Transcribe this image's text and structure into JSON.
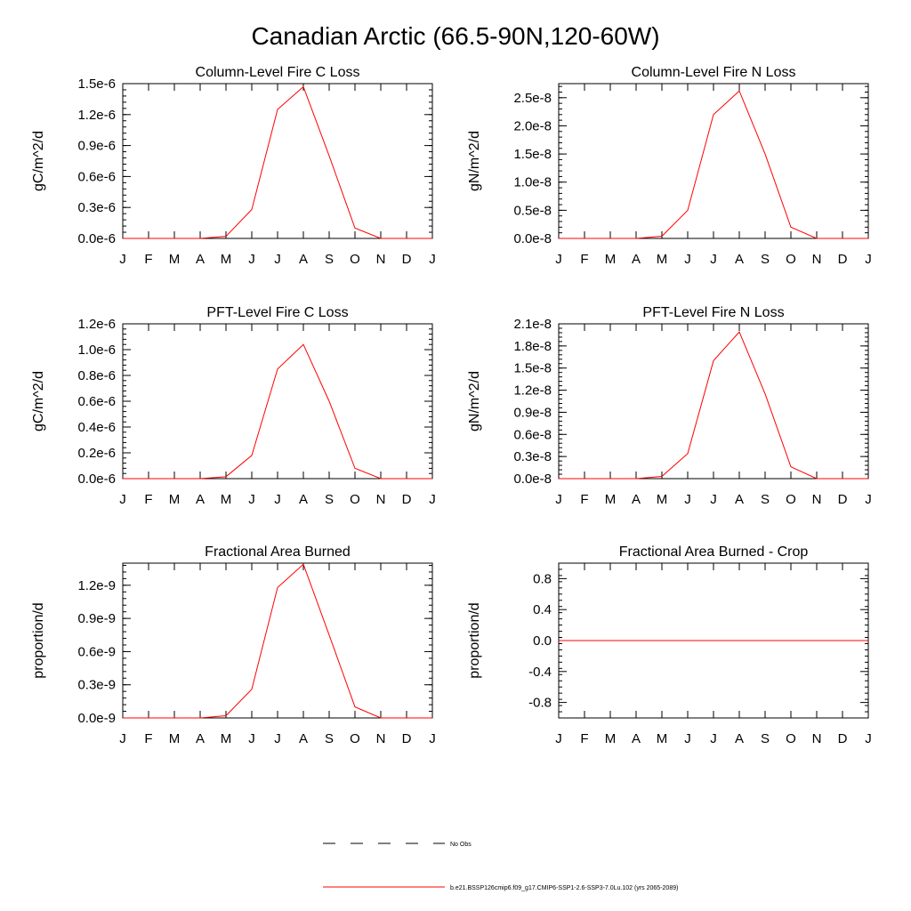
{
  "figure": {
    "title": "Canadian Arctic (66.5-90N,120-60W)"
  },
  "chart_data": [
    {
      "type": "line",
      "title": "Column-Level Fire C Loss",
      "xlabel": "",
      "ylabel": "gC/m^2/d",
      "categories": [
        "J",
        "F",
        "M",
        "A",
        "M",
        "J",
        "J",
        "A",
        "S",
        "O",
        "N",
        "D",
        "J"
      ],
      "ylim": [
        0,
        1.5e-06
      ],
      "yticks": [
        0,
        3e-07,
        6e-07,
        9e-07,
        1.2e-06,
        1.5e-06
      ],
      "ytick_labels": [
        "0.0e-6",
        "0.3e-6",
        "0.6e-6",
        "0.9e-6",
        "1.2e-6",
        "1.5e-6"
      ],
      "grid": false,
      "series": [
        {
          "name": "b.e21.BSSP126cmip6.f09_g17.CMIP6-SSP1-2.6-SSP3-7.0Lu.102 (yrs 2065-2089)",
          "color": "#ff0000",
          "values": [
            0,
            0,
            0,
            0,
            2e-08,
            2.8e-07,
            1.25e-06,
            1.47e-06,
            8e-07,
            1e-07,
            0,
            0,
            0
          ]
        }
      ]
    },
    {
      "type": "line",
      "title": "Column-Level Fire N Loss",
      "xlabel": "",
      "ylabel": "gN/m^2/d",
      "categories": [
        "J",
        "F",
        "M",
        "A",
        "M",
        "J",
        "J",
        "A",
        "S",
        "O",
        "N",
        "D",
        "J"
      ],
      "ylim": [
        0,
        2.75e-08
      ],
      "yticks": [
        0,
        5e-09,
        1e-08,
        1.5e-08,
        2e-08,
        2.5e-08
      ],
      "ytick_labels": [
        "0.0e-8",
        "0.5e-8",
        "1.0e-8",
        "1.5e-8",
        "2.0e-8",
        "2.5e-8"
      ],
      "grid": false,
      "series": [
        {
          "name": "b.e21.BSSP126cmip6.f09_g17.CMIP6-SSP1-2.6-SSP3-7.0Lu.102 (yrs 2065-2089)",
          "color": "#ff0000",
          "values": [
            0,
            0,
            0,
            0,
            4e-10,
            5e-09,
            2.2e-08,
            2.62e-08,
            1.5e-08,
            2e-09,
            0,
            0,
            0
          ]
        }
      ]
    },
    {
      "type": "line",
      "title": "PFT-Level Fire C Loss",
      "xlabel": "",
      "ylabel": "gC/m^2/d",
      "categories": [
        "J",
        "F",
        "M",
        "A",
        "M",
        "J",
        "J",
        "A",
        "S",
        "O",
        "N",
        "D",
        "J"
      ],
      "ylim": [
        0,
        1.2e-06
      ],
      "yticks": [
        0,
        2e-07,
        4e-07,
        6e-07,
        8e-07,
        1e-06,
        1.2e-06
      ],
      "ytick_labels": [
        "0.0e-6",
        "0.2e-6",
        "0.4e-6",
        "0.6e-6",
        "0.8e-6",
        "1.0e-6",
        "1.2e-6"
      ],
      "grid": false,
      "series": [
        {
          "name": "b.e21.BSSP126cmip6.f09_g17.CMIP6-SSP1-2.6-SSP3-7.0Lu.102 (yrs 2065-2089)",
          "color": "#ff0000",
          "values": [
            0,
            0,
            0,
            0,
            1.5e-08,
            1.8e-07,
            8.5e-07,
            1.04e-06,
            6e-07,
            8e-08,
            0,
            0,
            0
          ]
        }
      ]
    },
    {
      "type": "line",
      "title": "PFT-Level Fire N Loss",
      "xlabel": "",
      "ylabel": "gN/m^2/d",
      "categories": [
        "J",
        "F",
        "M",
        "A",
        "M",
        "J",
        "J",
        "A",
        "S",
        "O",
        "N",
        "D",
        "J"
      ],
      "ylim": [
        0,
        2.1e-08
      ],
      "yticks": [
        0,
        3e-09,
        6e-09,
        9e-09,
        1.2e-08,
        1.5e-08,
        1.8e-08,
        2.1e-08
      ],
      "ytick_labels": [
        "0.0e-8",
        "0.3e-8",
        "0.6e-8",
        "0.9e-8",
        "1.2e-8",
        "1.5e-8",
        "1.8e-8",
        "2.1e-8"
      ],
      "grid": false,
      "series": [
        {
          "name": "b.e21.BSSP126cmip6.f09_g17.CMIP6-SSP1-2.6-SSP3-7.0Lu.102 (yrs 2065-2089)",
          "color": "#ff0000",
          "values": [
            0,
            0,
            0,
            0,
            3e-10,
            3.4e-09,
            1.6e-08,
            1.99e-08,
            1.15e-08,
            1.6e-09,
            0,
            0,
            0
          ]
        }
      ]
    },
    {
      "type": "line",
      "title": "Fractional Area Burned",
      "xlabel": "",
      "ylabel": "proportion/d",
      "categories": [
        "J",
        "F",
        "M",
        "A",
        "M",
        "J",
        "J",
        "A",
        "S",
        "O",
        "N",
        "D",
        "J"
      ],
      "ylim": [
        0,
        1.4e-09
      ],
      "yticks": [
        0,
        3e-10,
        6e-10,
        9e-10,
        1.2e-09
      ],
      "ytick_labels": [
        "0.0e-9",
        "0.3e-9",
        "0.6e-9",
        "0.9e-9",
        "1.2e-9"
      ],
      "grid": false,
      "series": [
        {
          "name": "b.e21.BSSP126cmip6.f09_g17.CMIP6-SSP1-2.6-SSP3-7.0Lu.102 (yrs 2065-2089)",
          "color": "#ff0000",
          "values": [
            0,
            0,
            0,
            0,
            2e-11,
            2.6e-10,
            1.18e-09,
            1.39e-09,
            7.5e-10,
            1e-10,
            0,
            0,
            0
          ]
        }
      ]
    },
    {
      "type": "line",
      "title": "Fractional Area Burned - Crop",
      "xlabel": "",
      "ylabel": "proportion/d",
      "categories": [
        "J",
        "F",
        "M",
        "A",
        "M",
        "J",
        "J",
        "A",
        "S",
        "O",
        "N",
        "D",
        "J"
      ],
      "ylim": [
        -1.0,
        1.0
      ],
      "yticks": [
        -0.8,
        -0.4,
        0.0,
        0.4,
        0.8
      ],
      "ytick_labels": [
        "-0.8",
        "-0.4",
        "0.0",
        "0.4",
        "0.8"
      ],
      "grid": false,
      "series": [
        {
          "name": "b.e21.BSSP126cmip6.f09_g17.CMIP6-SSP1-2.6-SSP3-7.0Lu.102 (yrs 2065-2089)",
          "color": "#ff0000",
          "values": [
            0,
            0,
            0,
            0,
            0,
            0,
            0,
            0,
            0,
            0,
            0,
            0,
            0
          ]
        }
      ]
    }
  ],
  "legend": {
    "placement": "bottom",
    "items": [
      {
        "label": "No Obs",
        "style": "dashed",
        "color": "#000000"
      },
      {
        "label": "b.e21.BSSP126cmip6.f09_g17.CMIP6-SSP1-2.6-SSP3-7.0Lu.102 (yrs 2065-2089)",
        "style": "solid",
        "color": "#ff0000"
      }
    ]
  }
}
